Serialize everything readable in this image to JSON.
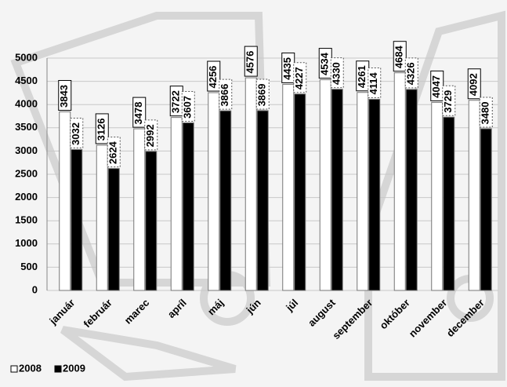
{
  "chart_data": {
    "type": "bar",
    "categories": [
      "január",
      "február",
      "marec",
      "apríl",
      "máj",
      "jún",
      "júl",
      "august",
      "september",
      "október",
      "november",
      "december"
    ],
    "series": [
      {
        "name": "2008",
        "color": "#ffffff",
        "values": [
          3843,
          3126,
          3478,
          3722,
          4256,
          4576,
          4435,
          4534,
          4261,
          4684,
          4047,
          4092
        ]
      },
      {
        "name": "2009",
        "color": "#000000",
        "values": [
          3032,
          2624,
          2992,
          3607,
          3866,
          3869,
          4227,
          4330,
          4114,
          4326,
          3729,
          3480
        ]
      }
    ],
    "ylim": [
      0,
      5000
    ],
    "yticks": [
      0,
      500,
      1000,
      1500,
      2000,
      2500,
      3000,
      3500,
      4000,
      4500,
      5000
    ],
    "grid": true
  }
}
